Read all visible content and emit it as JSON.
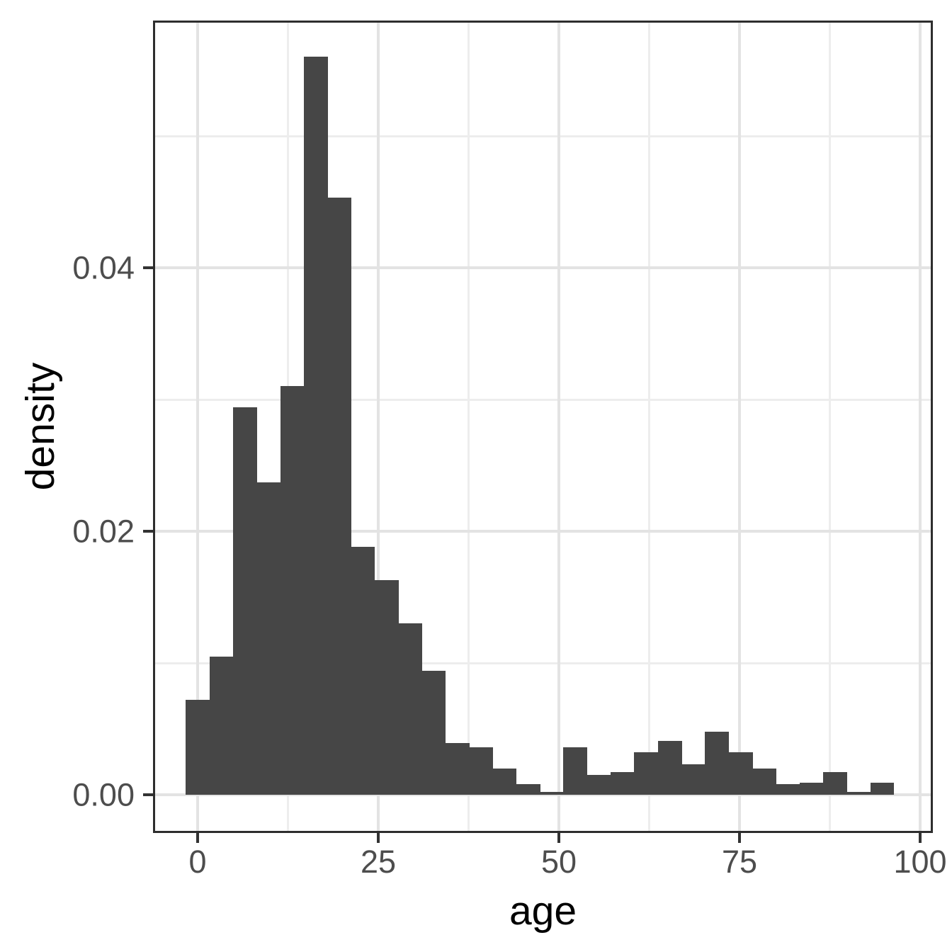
{
  "figure": {
    "background": "#ffffff"
  },
  "colors": {
    "bar_fill": "#464646",
    "panel_background": "#ffffff",
    "panel_border": "#2e2e2e",
    "grid_major": "#e3e3e3",
    "grid_minor": "#ededed",
    "tick_mark": "#333333",
    "tick_label": "#4d4d4d",
    "axis_title": "#000000"
  },
  "chart_data": {
    "type": "bar",
    "subtype": "histogram",
    "title": "",
    "xlabel": "age",
    "ylabel": "density",
    "grid": "on",
    "legend_position": "none",
    "xlim": [
      -6,
      101.6
    ],
    "ylim": [
      -0.0028,
      0.0588
    ],
    "x_ticks": [
      0,
      25,
      50,
      75,
      100
    ],
    "x_tick_labels": [
      "0",
      "25",
      "50",
      "75",
      "100"
    ],
    "x_minor_gridlines": [
      12.5,
      37.5,
      62.5,
      87.5
    ],
    "y_ticks": [
      0,
      0.02,
      0.04
    ],
    "y_tick_labels": [
      "0.00",
      "0.02",
      "0.04"
    ],
    "y_minor_gridlines": [
      0.01,
      0.03,
      0.05
    ],
    "bin_width": 3.27,
    "bin_edges": [
      -1.63,
      1.63,
      4.9,
      8.17,
      11.43,
      14.7,
      17.97,
      21.23,
      24.5,
      27.77,
      31.03,
      34.3,
      37.57,
      40.83,
      44.1,
      47.37,
      50.63,
      53.9,
      57.17,
      60.43,
      63.7,
      66.97,
      70.23,
      73.5,
      76.77,
      80.03,
      83.3,
      86.57,
      89.83,
      93.1,
      96.37
    ],
    "densities": [
      0.0072,
      0.0105,
      0.0294,
      0.0237,
      0.031,
      0.056,
      0.0453,
      0.0188,
      0.0163,
      0.013,
      0.0094,
      0.0039,
      0.0036,
      0.002,
      0.0008,
      0.0002,
      0.0036,
      0.0015,
      0.0017,
      0.0032,
      0.0041,
      0.0023,
      0.0048,
      0.0032,
      0.002,
      0.0008,
      0.0009,
      0.0017,
      0.0002,
      0.0009
    ]
  }
}
